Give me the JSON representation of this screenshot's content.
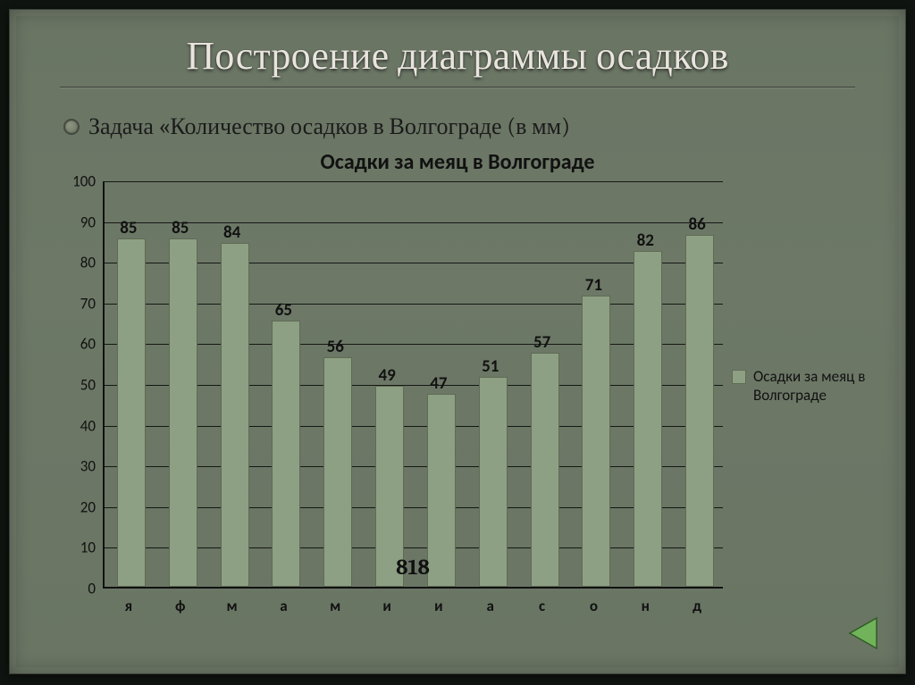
{
  "slide": {
    "title": "Построение диаграммы осадков",
    "task_text": "Задача «Количество осадков в Волгограде (в мм)",
    "background_color": "#6b7665",
    "frame_color": "#0f1410"
  },
  "chart": {
    "type": "bar",
    "title": "Осадки за меяц в Волгограде",
    "title_fontsize": 24,
    "title_color": "#111111",
    "categories": [
      "я",
      "ф",
      "м",
      "а",
      "м",
      "и",
      "и",
      "а",
      "с",
      "о",
      "н",
      "д"
    ],
    "values": [
      85,
      85,
      84,
      65,
      56,
      49,
      47,
      51,
      57,
      71,
      82,
      86
    ],
    "bar_color": "#8ea083",
    "bar_border_color": "#5f6b54",
    "bar_width": 0.52,
    "ylim": [
      0,
      100
    ],
    "ytick_step": 10,
    "axis_color": "#111111",
    "grid_color": "#111111",
    "tick_fontsize": 17,
    "xtick_fontweight": "bold",
    "data_label_fontsize": 19,
    "data_label_color": "#111111",
    "legend": {
      "label": "Осадки за меяц в Волгограде",
      "swatch_color": "#8ea083"
    },
    "overlay_number": {
      "text": "818",
      "between_categories": [
        5,
        6
      ],
      "fontsize": 24
    }
  },
  "nav": {
    "prev_icon_color": "#71b35a",
    "prev_icon_stroke": "#2f5c24"
  }
}
